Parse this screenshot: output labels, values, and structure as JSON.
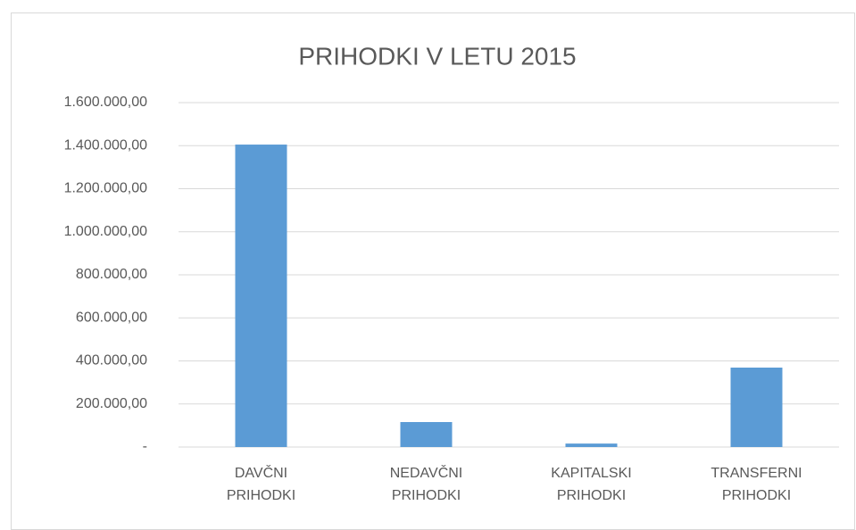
{
  "chart_data": {
    "type": "bar",
    "title": "PRIHODKI V LETU 2015",
    "categories": [
      "DAVČNI PRIHODKI",
      "NEDAVČNI PRIHODKI",
      "KAPITALSKI PRIHODKI",
      "TRANSFERNI PRIHODKI"
    ],
    "values": [
      1405000,
      116000,
      16000,
      369000
    ],
    "color": "#5b9bd5",
    "ylim": [
      0,
      1600000
    ],
    "yticks": [
      {
        "value": 0,
        "label": "-"
      },
      {
        "value": 200000,
        "label": "200.000,00"
      },
      {
        "value": 400000,
        "label": "400.000,00"
      },
      {
        "value": 600000,
        "label": "600.000,00"
      },
      {
        "value": 800000,
        "label": "800.000,00"
      },
      {
        "value": 1000000,
        "label": "1.000.000,00"
      },
      {
        "value": 1200000,
        "label": "1.200.000,00"
      },
      {
        "value": 1400000,
        "label": "1.400.000,00"
      },
      {
        "value": 1600000,
        "label": "1.600.000,00"
      }
    ],
    "grid": true
  }
}
